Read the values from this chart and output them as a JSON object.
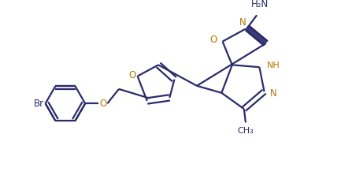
{
  "bg_color": "#ffffff",
  "line_color": "#2b2b6b",
  "orange_color": "#b07800",
  "bond_lw": 1.6,
  "figsize": [
    4.47,
    2.27
  ],
  "dpi": 100,
  "xlim": [
    0,
    10
  ],
  "ylim": [
    0,
    5.1
  ]
}
